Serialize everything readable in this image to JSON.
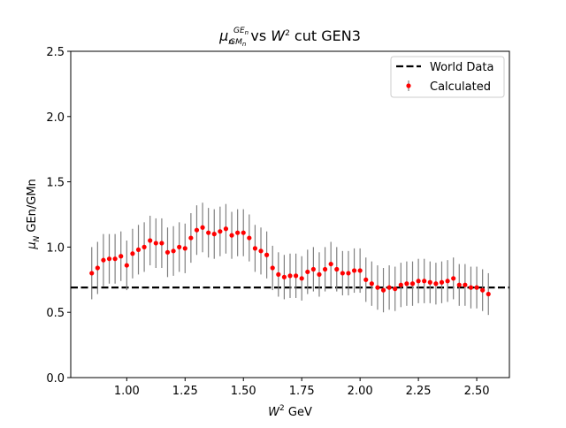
{
  "chart_data": {
    "type": "scatter",
    "title": {
      "mu": "μ",
      "mu_sub": "n",
      "num": "GE",
      "num_sub": "n",
      "den": "GM",
      "den_sub": "n",
      "mid": " vs ",
      "w": "W",
      "w_sup": "2",
      "tail": " cut GEN3"
    },
    "x_label": {
      "base": "W",
      "sup": "2",
      "rest": " GeV"
    },
    "y_label": {
      "base": "μ",
      "sub": "N",
      "rest": " GEn/GMn"
    },
    "xlim": [
      0.76,
      2.64
    ],
    "ylim": [
      0,
      2.5
    ],
    "xticks": [
      {
        "value": 1.0,
        "label": "1.00"
      },
      1.25,
      {
        "value": 1.5,
        "label": "1.50"
      },
      1.75,
      {
        "value": 2.0,
        "label": "2.00"
      },
      2.25,
      {
        "value": 2.5,
        "label": "2.50"
      }
    ],
    "yticks": [
      {
        "value": 0,
        "label": "0.0"
      },
      0.5,
      {
        "value": 1,
        "label": "1.0"
      },
      1.5,
      {
        "value": 2,
        "label": "2.0"
      },
      2.5
    ],
    "legend": "upper right",
    "x": [
      0.85,
      0.875,
      0.9,
      0.925,
      0.95,
      0.975,
      1.0,
      1.025,
      1.05,
      1.075,
      1.1,
      1.125,
      1.15,
      1.175,
      1.2,
      1.225,
      1.25,
      1.275,
      1.3,
      1.325,
      1.35,
      1.375,
      1.4,
      1.425,
      1.45,
      1.475,
      1.5,
      1.525,
      1.55,
      1.575,
      1.6,
      1.625,
      1.65,
      1.675,
      1.7,
      1.725,
      1.75,
      1.775,
      1.8,
      1.825,
      1.85,
      1.875,
      1.9,
      1.925,
      1.95,
      1.975,
      2.0,
      2.025,
      2.05,
      2.075,
      2.1,
      2.125,
      2.15,
      2.175,
      2.2,
      2.225,
      2.25,
      2.275,
      2.3,
      2.325,
      2.35,
      2.375,
      2.4,
      2.425,
      2.45,
      2.475,
      2.5,
      2.525,
      2.55
    ],
    "series": [
      {
        "name": "World Data",
        "color": "#000000",
        "style": "dashed",
        "value": 0.69
      },
      {
        "name": "Calculated",
        "color": "#ff0000",
        "error_color": "#808080",
        "values": [
          0.8,
          0.84,
          0.9,
          0.91,
          0.91,
          0.93,
          0.86,
          0.95,
          0.98,
          1.0,
          1.05,
          1.03,
          1.03,
          0.96,
          0.97,
          1.0,
          0.99,
          1.07,
          1.13,
          1.15,
          1.11,
          1.1,
          1.12,
          1.14,
          1.09,
          1.11,
          1.11,
          1.07,
          0.99,
          0.97,
          0.94,
          0.84,
          0.79,
          0.77,
          0.78,
          0.78,
          0.76,
          0.81,
          0.83,
          0.79,
          0.83,
          0.87,
          0.83,
          0.8,
          0.8,
          0.82,
          0.82,
          0.75,
          0.72,
          0.69,
          0.67,
          0.69,
          0.68,
          0.71,
          0.72,
          0.72,
          0.74,
          0.74,
          0.73,
          0.72,
          0.73,
          0.74,
          0.76,
          0.71,
          0.71,
          0.69,
          0.69,
          0.67,
          0.64
        ],
        "errors": [
          0.2,
          0.2,
          0.2,
          0.19,
          0.19,
          0.19,
          0.19,
          0.19,
          0.19,
          0.19,
          0.19,
          0.19,
          0.19,
          0.19,
          0.19,
          0.19,
          0.19,
          0.19,
          0.19,
          0.19,
          0.19,
          0.19,
          0.19,
          0.19,
          0.18,
          0.18,
          0.18,
          0.18,
          0.18,
          0.18,
          0.18,
          0.17,
          0.17,
          0.17,
          0.17,
          0.17,
          0.17,
          0.17,
          0.17,
          0.17,
          0.17,
          0.17,
          0.17,
          0.17,
          0.17,
          0.17,
          0.17,
          0.17,
          0.17,
          0.17,
          0.17,
          0.17,
          0.17,
          0.17,
          0.17,
          0.17,
          0.17,
          0.17,
          0.16,
          0.16,
          0.16,
          0.16,
          0.16,
          0.16,
          0.16,
          0.16,
          0.16,
          0.16,
          0.16
        ]
      }
    ]
  }
}
